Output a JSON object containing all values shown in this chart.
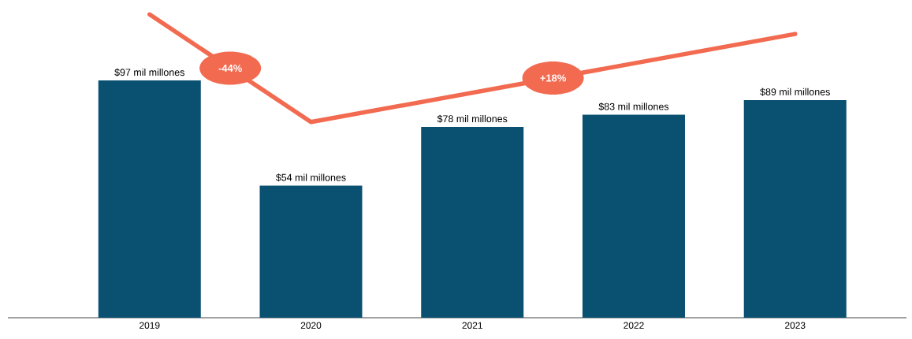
{
  "chart_data": {
    "type": "bar",
    "categories": [
      "2019",
      "2020",
      "2021",
      "2022",
      "2023"
    ],
    "tick_labels": "x",
    "series": [
      {
        "color": "#0a5071",
        "values": [
          97,
          54,
          78,
          83,
          89
        ],
        "value_labels": [
          "$97 mil millones",
          "$54 mil millones",
          "$78 mil millones",
          "$83 mil millones",
          "$89 mil millones"
        ]
      },
      {
        "type": "line",
        "color": "#f26a50",
        "values": [
          124,
          80,
          null,
          null,
          116
        ]
      }
    ],
    "annotations": [
      "-44%",
      "+18%"
    ]
  }
}
